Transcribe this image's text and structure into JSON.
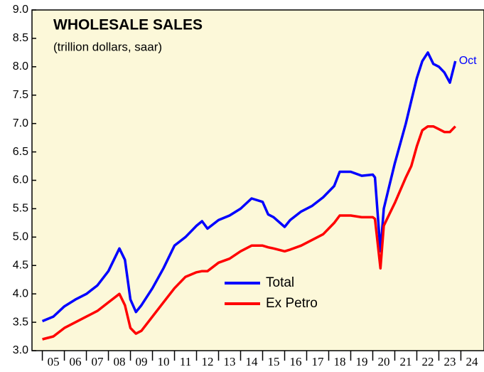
{
  "chart_data": {
    "type": "line",
    "title": "WHOLESALE SALES",
    "subtitle": "(trillion dollars, saar)",
    "annotation": "Oct",
    "x": [
      2005.0,
      2005.5,
      2006.0,
      2006.5,
      2007.0,
      2007.5,
      2008.0,
      2008.5,
      2008.75,
      2009.0,
      2009.25,
      2009.5,
      2010.0,
      2010.5,
      2011.0,
      2011.5,
      2012.0,
      2012.25,
      2012.5,
      2013.0,
      2013.5,
      2014.0,
      2014.5,
      2015.0,
      2015.25,
      2015.5,
      2016.0,
      2016.25,
      2016.75,
      2017.25,
      2017.75,
      2018.25,
      2018.5,
      2019.0,
      2019.5,
      2020.0,
      2020.1,
      2020.35,
      2020.5,
      2020.75,
      2021.0,
      2021.5,
      2021.75,
      2022.0,
      2022.25,
      2022.5,
      2022.75,
      2023.0,
      2023.25,
      2023.5,
      2023.75
    ],
    "series": [
      {
        "name": "Total",
        "color": "#0000ff",
        "values": [
          3.52,
          3.6,
          3.78,
          3.9,
          4.0,
          4.15,
          4.4,
          4.8,
          4.6,
          3.9,
          3.68,
          3.8,
          4.1,
          4.45,
          4.85,
          5.0,
          5.2,
          5.28,
          5.15,
          5.3,
          5.38,
          5.5,
          5.68,
          5.62,
          5.4,
          5.35,
          5.18,
          5.3,
          5.45,
          5.55,
          5.7,
          5.9,
          6.15,
          6.15,
          6.08,
          6.1,
          6.05,
          4.75,
          5.5,
          5.9,
          6.3,
          7.0,
          7.4,
          7.8,
          8.1,
          8.25,
          8.05,
          8.0,
          7.9,
          7.72,
          8.1
        ]
      },
      {
        "name": "Ex Petro",
        "color": "#ff0000",
        "values": [
          3.2,
          3.25,
          3.4,
          3.5,
          3.6,
          3.7,
          3.85,
          4.0,
          3.8,
          3.4,
          3.3,
          3.35,
          3.6,
          3.85,
          4.1,
          4.3,
          4.38,
          4.4,
          4.4,
          4.55,
          4.62,
          4.75,
          4.85,
          4.85,
          4.82,
          4.8,
          4.75,
          4.78,
          4.85,
          4.95,
          5.05,
          5.25,
          5.38,
          5.38,
          5.35,
          5.35,
          5.32,
          4.45,
          5.2,
          5.4,
          5.6,
          6.05,
          6.25,
          6.6,
          6.88,
          6.95,
          6.95,
          6.9,
          6.85,
          6.85,
          6.95
        ]
      }
    ],
    "xlim": [
      2004.53,
      2025.05
    ],
    "xticks": [
      {
        "value": 2005,
        "label": "05"
      },
      {
        "value": 2006,
        "label": "06"
      },
      {
        "value": 2007,
        "label": "07"
      },
      {
        "value": 2008,
        "label": "08"
      },
      {
        "value": 2009,
        "label": "09"
      },
      {
        "value": 2010,
        "label": "10"
      },
      {
        "value": 2011,
        "label": "11"
      },
      {
        "value": 2012,
        "label": "12"
      },
      {
        "value": 2013,
        "label": "13"
      },
      {
        "value": 2014,
        "label": "14"
      },
      {
        "value": 2015,
        "label": "15"
      },
      {
        "value": 2016,
        "label": "16"
      },
      {
        "value": 2017,
        "label": "17"
      },
      {
        "value": 2018,
        "label": "18"
      },
      {
        "value": 2019,
        "label": "19"
      },
      {
        "value": 2020,
        "label": "20"
      },
      {
        "value": 2021,
        "label": "21"
      },
      {
        "value": 2022,
        "label": "22"
      },
      {
        "value": 2023,
        "label": "23"
      },
      {
        "value": 2024,
        "label": "24"
      }
    ],
    "ylim": [
      3.0,
      9.0
    ],
    "yticks": [
      {
        "value": 3.0,
        "label": "3.0"
      },
      {
        "value": 3.5,
        "label": "3.5"
      },
      {
        "value": 4.0,
        "label": "4.0"
      },
      {
        "value": 4.5,
        "label": "4.5"
      },
      {
        "value": 5.0,
        "label": "5.0"
      },
      {
        "value": 5.5,
        "label": "5.5"
      },
      {
        "value": 6.0,
        "label": "6.0"
      },
      {
        "value": 6.5,
        "label": "6.5"
      },
      {
        "value": 7.0,
        "label": "7.0"
      },
      {
        "value": 7.5,
        "label": "7.5"
      },
      {
        "value": 8.0,
        "label": "8.0"
      },
      {
        "value": 8.5,
        "label": "8.5"
      },
      {
        "value": 9.0,
        "label": "9.0"
      }
    ],
    "legend": "lower-center"
  }
}
